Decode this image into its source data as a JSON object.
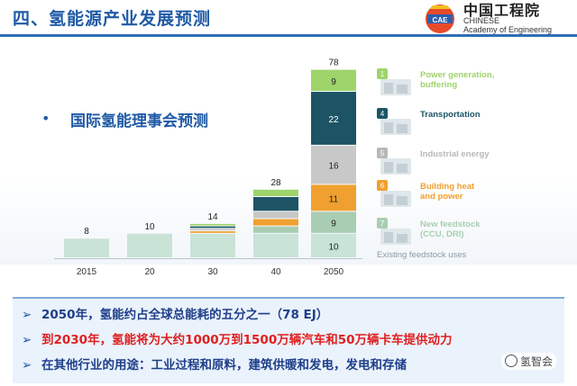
{
  "header": {
    "title": "四、氢能源产业发展预测",
    "logo_cn": "中国工程院",
    "logo_en_line1": "CHINESE",
    "logo_en_line2": "Academy of Engineering"
  },
  "subtitle": "国际氢能理事会预测",
  "chart_data": {
    "type": "bar",
    "stacked": true,
    "categories": [
      "2015",
      "20",
      "30",
      "40",
      "2050"
    ],
    "totals": [
      8,
      10,
      14,
      28,
      78
    ],
    "series": [
      {
        "name": "Existing feedstock uses",
        "color": "#c9e3d6",
        "values": [
          8,
          10,
          10,
          10,
          10
        ],
        "labels": [
          null,
          null,
          null,
          null,
          "10"
        ]
      },
      {
        "name": "New feedstock (CCU, DRI)",
        "color": "#a9cdb2",
        "values": [
          0,
          0,
          0,
          3,
          9
        ],
        "labels": [
          null,
          null,
          null,
          null,
          "9"
        ]
      },
      {
        "name": "Building heat and power",
        "color": "#f0a030",
        "values": [
          0,
          0,
          1,
          3,
          11
        ],
        "labels": [
          null,
          null,
          null,
          null,
          "11"
        ]
      },
      {
        "name": "Industrial energy",
        "color": "#c8c8c8",
        "values": [
          0,
          0,
          1,
          3,
          16
        ],
        "labels": [
          null,
          null,
          null,
          null,
          "16"
        ]
      },
      {
        "name": "Transportation",
        "color": "#1c5466",
        "values": [
          0,
          0,
          1,
          6,
          22
        ],
        "labels": [
          null,
          null,
          null,
          null,
          "22"
        ]
      },
      {
        "name": "Power generation, buffering",
        "color": "#9ed46a",
        "values": [
          0,
          0,
          1,
          3,
          9
        ],
        "labels": [
          null,
          null,
          null,
          null,
          "9"
        ]
      }
    ],
    "ylim": [
      0,
      80
    ]
  },
  "legend": [
    {
      "label_line1": "Power generation,",
      "label_line2": "buffering",
      "color": "#9ed46a",
      "number": "1",
      "icon": "power-plant-icon"
    },
    {
      "label_line1": "Transportation",
      "label_line2": "",
      "color": "#1c5466",
      "number": "4",
      "icon": "vehicle-icon"
    },
    {
      "label_line1": "Industrial energy",
      "label_line2": "",
      "color": "#b8b8b8",
      "number": "5",
      "icon": "factory-icon"
    },
    {
      "label_line1": "Building heat",
      "label_line2": "and power",
      "color": "#f0a030",
      "number": "6",
      "icon": "building-icon"
    },
    {
      "label_line1": "New feedstock",
      "label_line2": "(CCU, DRI)",
      "color": "#a9cdb2",
      "number": "7",
      "icon": "feedstock-icon"
    }
  ],
  "existing_label": "Existing feedstock uses",
  "bottom": {
    "line1": "2050年，氢能约占全球总能耗的五分之一（78 EJ）",
    "line2": "到2030年，氢能将为大约1000万到1500万辆汽车和50万辆卡车提供动力",
    "line3": "在其他行业的用途：工业过程和原料，建筑供暖和发电，发电和存储",
    "arrow": "➢",
    "line1_color": "#1f3f8a",
    "line2_color": "#e02020",
    "line3_color": "#1f3f8a"
  },
  "watermark": "氢智会",
  "bullet": "•"
}
